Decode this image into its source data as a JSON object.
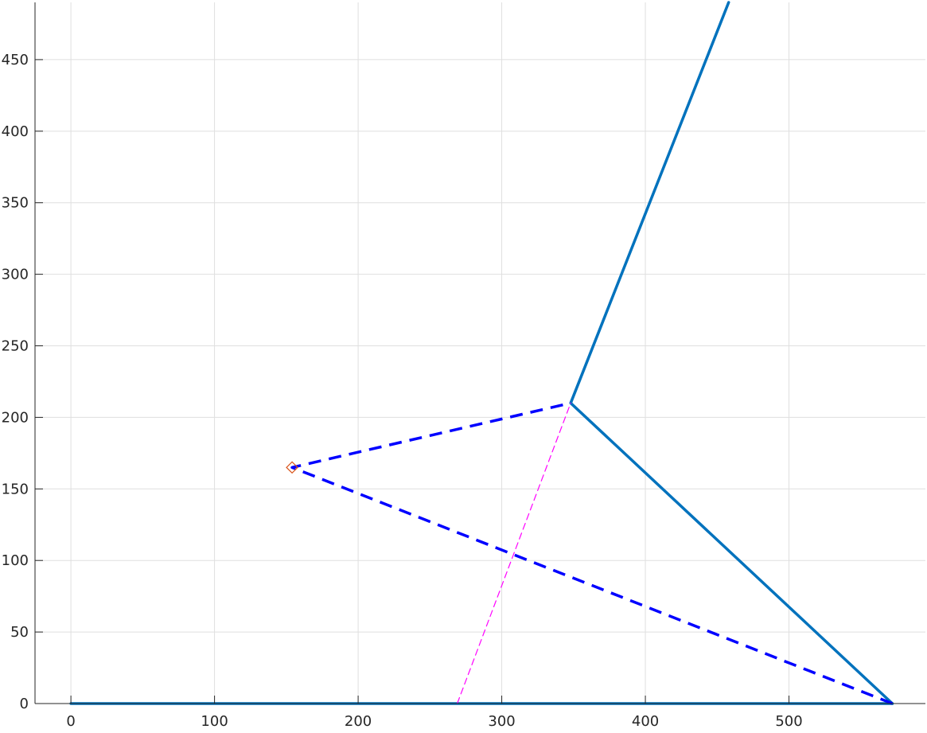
{
  "chart_data": {
    "type": "line",
    "title": "",
    "xlabel": "",
    "ylabel": "",
    "xlim": [
      -25,
      595
    ],
    "ylim": [
      0,
      490
    ],
    "xticks": [
      0,
      100,
      200,
      300,
      400,
      500
    ],
    "yticks": [
      0,
      50,
      100,
      150,
      200,
      250,
      300,
      350,
      400,
      450
    ],
    "xtick_labels": [
      "0",
      "100",
      "200",
      "300",
      "400",
      "500"
    ],
    "ytick_labels": [
      "0",
      "50",
      "100",
      "150",
      "200",
      "250",
      "300",
      "350",
      "400",
      "450"
    ],
    "grid": true,
    "colors": {
      "solid": "#0072BD",
      "dashed": "#0000FF",
      "magenta": "#FF00FF",
      "marker": "#D95319",
      "grid": "#DFDFDF",
      "axis": "#262626"
    },
    "series": [
      {
        "style": "solid",
        "x": [
          0,
          572
        ],
        "y": [
          0,
          0
        ]
      },
      {
        "style": "solid",
        "x": [
          572,
          348,
          458
        ],
        "y": [
          0,
          210,
          490
        ]
      },
      {
        "style": "dashed",
        "x": [
          572,
          154,
          348
        ],
        "y": [
          0,
          165,
          210
        ]
      },
      {
        "style": "thin-dashed",
        "x": [
          269,
          348
        ],
        "y": [
          0,
          210
        ]
      }
    ],
    "markers": [
      {
        "shape": "diamond",
        "x": 154,
        "y": 165
      }
    ]
  }
}
